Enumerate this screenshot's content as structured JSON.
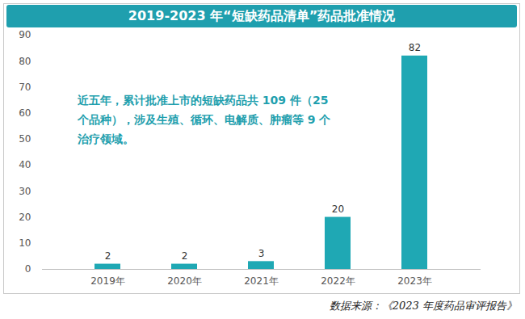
{
  "chart_data": {
    "type": "bar",
    "title": "2019-2023 年“短缺药品清单”药品批准情况",
    "annotation": "近五年，累计批准上市的短缺药品共 109 件（25 个品种），涉及生殖、循环、电解质、肿瘤等 9 个治疗领域。",
    "source": "数据来源：《2023 年度药品审评报告》",
    "categories": [
      "2019年",
      "2020年",
      "2021年",
      "2022年",
      "2023年"
    ],
    "values": [
      2,
      2,
      3,
      20,
      82
    ],
    "color": "#1fa8b4",
    "ylim": [
      0,
      90
    ],
    "yticks": [
      0,
      10,
      20,
      30,
      40,
      50,
      60,
      70,
      80,
      90
    ],
    "grid": false,
    "data_labels": true
  }
}
